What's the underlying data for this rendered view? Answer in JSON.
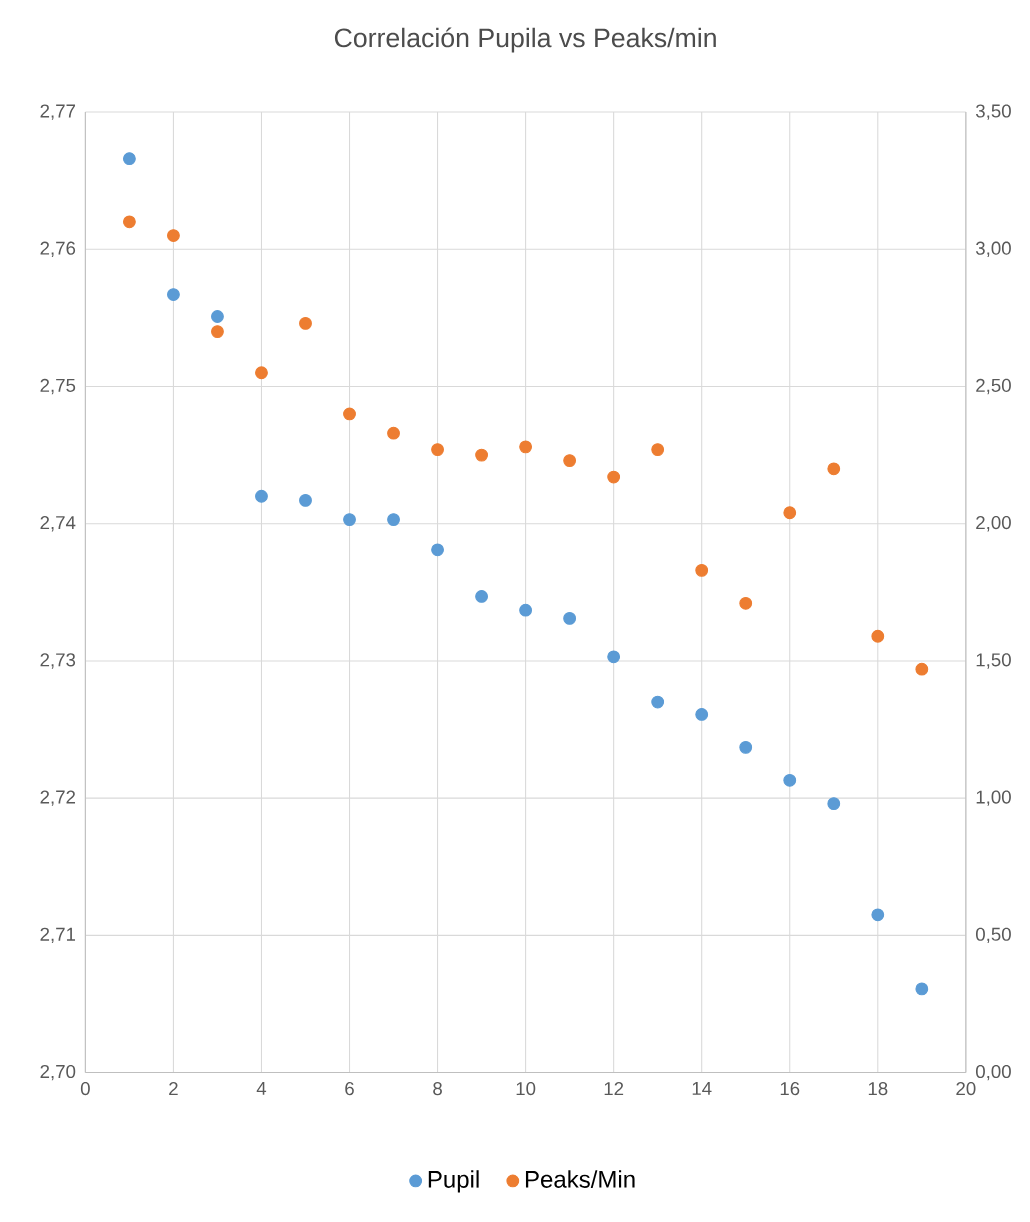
{
  "chart_data": {
    "type": "scatter",
    "title": "Correlación Pupila vs Peaks/min",
    "x": [
      1,
      2,
      3,
      4,
      5,
      6,
      7,
      8,
      9,
      10,
      11,
      12,
      13,
      14,
      15,
      16,
      17,
      18,
      19
    ],
    "series": [
      {
        "name": "Pupil",
        "color": "#5b9bd5",
        "values": [
          2.7666,
          2.7567,
          2.7551,
          2.742,
          2.7417,
          2.7403,
          2.7403,
          2.7381,
          2.7347,
          2.7337,
          2.7331,
          2.7303,
          2.727,
          2.7261,
          2.7237,
          2.7213,
          2.7196,
          2.7115,
          2.7061
        ]
      },
      {
        "name": "Peaks/Min",
        "color": "#ed7d31",
        "axis": "y2",
        "values": [
          3.1,
          3.05,
          2.7,
          2.55,
          2.73,
          2.4,
          2.33,
          2.27,
          2.25,
          2.28,
          2.23,
          2.17,
          2.27,
          1.83,
          1.71,
          2.04,
          2.2,
          1.59,
          1.47
        ]
      }
    ],
    "xlim": [
      0,
      20
    ],
    "xticks": [
      0,
      2,
      4,
      6,
      8,
      10,
      12,
      14,
      16,
      18,
      20
    ],
    "ylim": [
      2.7,
      2.77
    ],
    "yticks": [
      {
        "value": 2.7,
        "label": "2,70"
      },
      {
        "value": 2.71,
        "label": "2,71"
      },
      {
        "value": 2.72,
        "label": "2,72"
      },
      {
        "value": 2.73,
        "label": "2,73"
      },
      {
        "value": 2.74,
        "label": "2,74"
      },
      {
        "value": 2.75,
        "label": "2,75"
      },
      {
        "value": 2.76,
        "label": "2,76"
      },
      {
        "value": 2.77,
        "label": "2,77"
      }
    ],
    "y2lim": [
      0,
      3.5
    ],
    "y2ticks": [
      {
        "value": 0,
        "label": "0,00"
      },
      {
        "value": 0.5,
        "label": "0,50"
      },
      {
        "value": 1,
        "label": "1,00"
      },
      {
        "value": 1.5,
        "label": "1,50"
      },
      {
        "value": 2,
        "label": "2,00"
      },
      {
        "value": 2.5,
        "label": "2,50"
      },
      {
        "value": 3,
        "label": "3,00"
      },
      {
        "value": 3.5,
        "label": "3,50"
      }
    ],
    "grid": true,
    "legend": "bottom",
    "marker": "circle"
  }
}
